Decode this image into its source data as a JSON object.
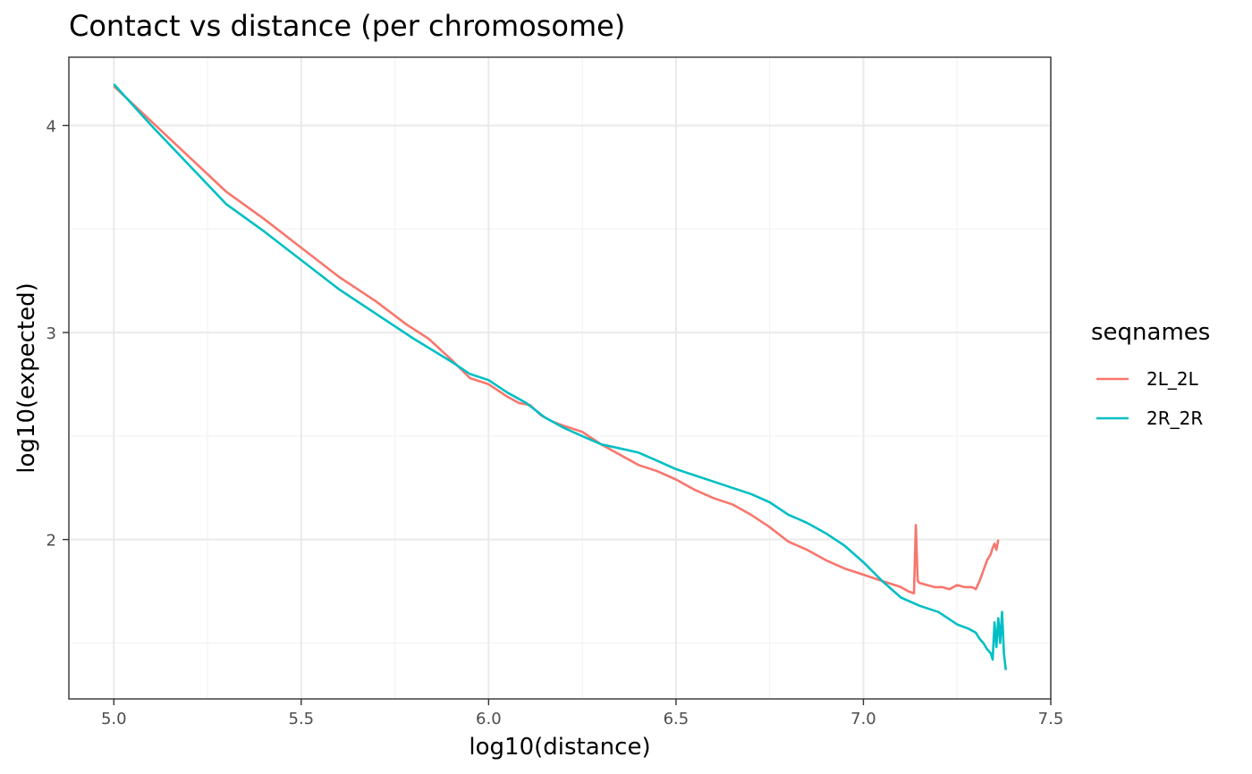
{
  "chart_data": {
    "type": "line",
    "title": "Contact vs distance (per chromosome)",
    "xlabel": "log10(distance)",
    "ylabel": "log10(expected)",
    "xlim": [
      4.88,
      7.5
    ],
    "ylim": [
      1.23,
      4.33
    ],
    "x_ticks": [
      5.0,
      5.5,
      6.0,
      6.5,
      7.0,
      7.5
    ],
    "x_tick_labels": [
      "5.0",
      "5.5",
      "6.0",
      "6.5",
      "7.0",
      "7.5"
    ],
    "y_ticks": [
      2,
      3,
      4
    ],
    "y_tick_labels": [
      "2",
      "3",
      "4"
    ],
    "grid": true,
    "legend": {
      "title": "seqnames",
      "position": "right"
    },
    "series": [
      {
        "name": "2L_2L",
        "color": "#F8766D",
        "x": [
          5.0,
          5.1,
          5.2,
          5.3,
          5.4,
          5.5,
          5.6,
          5.7,
          5.78,
          5.84,
          5.9,
          5.95,
          6.0,
          6.05,
          6.08,
          6.11,
          6.14,
          6.17,
          6.2,
          6.25,
          6.3,
          6.35,
          6.38,
          6.4,
          6.45,
          6.5,
          6.55,
          6.6,
          6.65,
          6.7,
          6.75,
          6.8,
          6.85,
          6.9,
          6.95,
          7.0,
          7.05,
          7.1,
          7.12,
          7.135,
          7.14,
          7.145,
          7.15,
          7.17,
          7.19,
          7.21,
          7.23,
          7.25,
          7.27,
          7.29,
          7.3,
          7.31,
          7.32,
          7.33,
          7.34,
          7.345,
          7.35,
          7.355,
          7.36
        ],
        "y": [
          4.19,
          4.02,
          3.85,
          3.68,
          3.55,
          3.41,
          3.27,
          3.15,
          3.04,
          2.97,
          2.87,
          2.78,
          2.75,
          2.69,
          2.66,
          2.65,
          2.6,
          2.57,
          2.55,
          2.52,
          2.46,
          2.41,
          2.38,
          2.36,
          2.33,
          2.29,
          2.24,
          2.2,
          2.17,
          2.12,
          2.06,
          1.99,
          1.95,
          1.9,
          1.86,
          1.83,
          1.8,
          1.77,
          1.75,
          1.74,
          2.07,
          1.8,
          1.79,
          1.78,
          1.77,
          1.77,
          1.76,
          1.78,
          1.77,
          1.77,
          1.76,
          1.8,
          1.85,
          1.9,
          1.93,
          1.96,
          1.98,
          1.95,
          2.0
        ]
      },
      {
        "name": "2R_2R",
        "color": "#00BFC4",
        "x": [
          5.0,
          5.1,
          5.2,
          5.3,
          5.4,
          5.5,
          5.6,
          5.7,
          5.8,
          5.9,
          5.95,
          6.0,
          6.05,
          6.1,
          6.15,
          6.2,
          6.25,
          6.3,
          6.35,
          6.4,
          6.45,
          6.5,
          6.55,
          6.6,
          6.65,
          6.7,
          6.75,
          6.8,
          6.85,
          6.9,
          6.95,
          7.0,
          7.05,
          7.1,
          7.15,
          7.2,
          7.25,
          7.28,
          7.3,
          7.31,
          7.32,
          7.33,
          7.34,
          7.345,
          7.35,
          7.355,
          7.36,
          7.365,
          7.37,
          7.375,
          7.38
        ],
        "y": [
          4.2,
          4.0,
          3.81,
          3.62,
          3.49,
          3.35,
          3.21,
          3.09,
          2.97,
          2.86,
          2.8,
          2.77,
          2.71,
          2.66,
          2.59,
          2.54,
          2.5,
          2.46,
          2.44,
          2.42,
          2.38,
          2.34,
          2.31,
          2.28,
          2.25,
          2.22,
          2.18,
          2.12,
          2.08,
          2.03,
          1.97,
          1.89,
          1.8,
          1.72,
          1.68,
          1.65,
          1.59,
          1.57,
          1.55,
          1.52,
          1.5,
          1.47,
          1.45,
          1.42,
          1.6,
          1.48,
          1.62,
          1.5,
          1.65,
          1.45,
          1.37
        ]
      }
    ]
  }
}
